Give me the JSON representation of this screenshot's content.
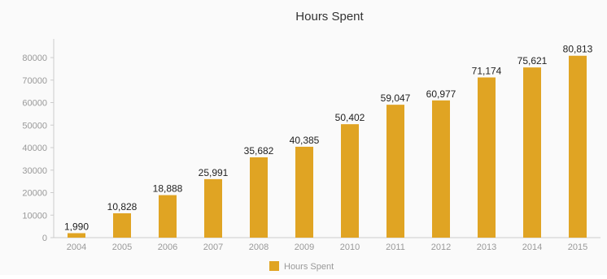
{
  "chart_data": {
    "type": "bar",
    "title": "Hours Spent",
    "xlabel": "",
    "ylabel": "",
    "categories": [
      "2004",
      "2005",
      "2006",
      "2007",
      "2008",
      "2009",
      "2010",
      "2011",
      "2012",
      "2013",
      "2014",
      "2015"
    ],
    "series": [
      {
        "name": "Hours Spent",
        "values": [
          1990,
          10828,
          18888,
          25991,
          35682,
          40385,
          50402,
          59047,
          60977,
          71174,
          75621,
          80813
        ],
        "labels": [
          "1,990",
          "10,828",
          "18,888",
          "25,991",
          "35,682",
          "40,385",
          "50,402",
          "59,047",
          "60,977",
          "71,174",
          "75,621",
          "80,813"
        ],
        "color": "#e0a423"
      }
    ],
    "yticks": [
      0,
      10000,
      20000,
      30000,
      40000,
      50000,
      60000,
      70000,
      80000
    ],
    "ylim": [
      0,
      80000
    ],
    "grid": false,
    "legend": "bottom",
    "colors": {
      "bar": "#e0a423",
      "axis": "#cccccc",
      "tick_text": "#999999",
      "label_text": "#222222",
      "title_text": "#333333"
    }
  }
}
